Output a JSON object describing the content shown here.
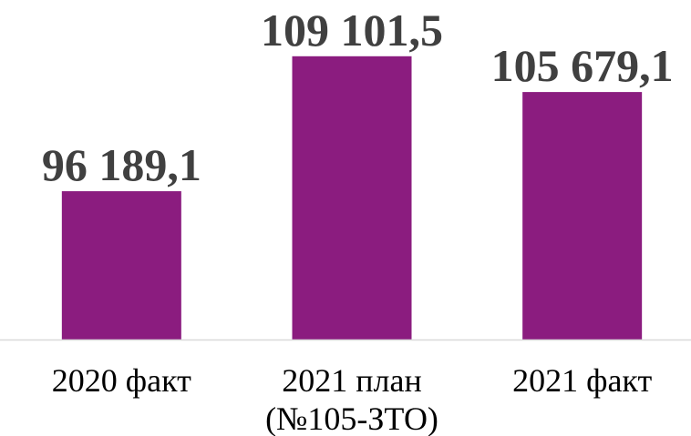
{
  "chart_data": {
    "type": "bar",
    "title": "",
    "xlabel": "",
    "ylabel": "",
    "categories": [
      [
        "2020 факт"
      ],
      [
        "2021 план",
        "(№105-ЗТО)"
      ],
      [
        "2021 факт"
      ]
    ],
    "values": [
      96189.1,
      109101.5,
      105679.1
    ],
    "value_labels": [
      "96 189,1",
      "109 101,5",
      "105 679,1"
    ],
    "ylim": [
      82000,
      111000
    ],
    "grid": false,
    "legend": "none",
    "colors": {
      "bar": "#8b1c7f",
      "axis": "#d9d9d9",
      "label": "#404040",
      "category": "#000000"
    }
  }
}
